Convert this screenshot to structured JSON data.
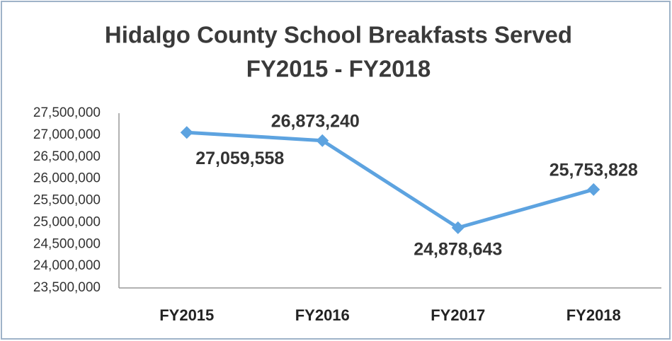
{
  "chart_data": {
    "type": "line",
    "title": "Hidalgo County School Breakfasts Served",
    "subtitle": "FY2015 - FY2018",
    "categories": [
      "FY2015",
      "FY2016",
      "FY2017",
      "FY2018"
    ],
    "values": [
      27059558,
      26873240,
      24878643,
      25753828
    ],
    "value_labels": [
      "27,059,558",
      "26,873,240",
      "24,878,643",
      "25,753,828"
    ],
    "color": "#5da3e0",
    "ylim": [
      23500000,
      27500000
    ],
    "yticks": [
      {
        "value": 23500000,
        "label": "23,500,000"
      },
      {
        "value": 24000000,
        "label": "24,000,000"
      },
      {
        "value": 24500000,
        "label": "24,500,000"
      },
      {
        "value": 25000000,
        "label": "25,000,000"
      },
      {
        "value": 25500000,
        "label": "25,500,000"
      },
      {
        "value": 26000000,
        "label": "26,000,000"
      },
      {
        "value": 26500000,
        "label": "26,500,000"
      },
      {
        "value": 27000000,
        "label": "27,000,000"
      },
      {
        "value": 27500000,
        "label": "27,500,000"
      }
    ],
    "grid": false
  }
}
